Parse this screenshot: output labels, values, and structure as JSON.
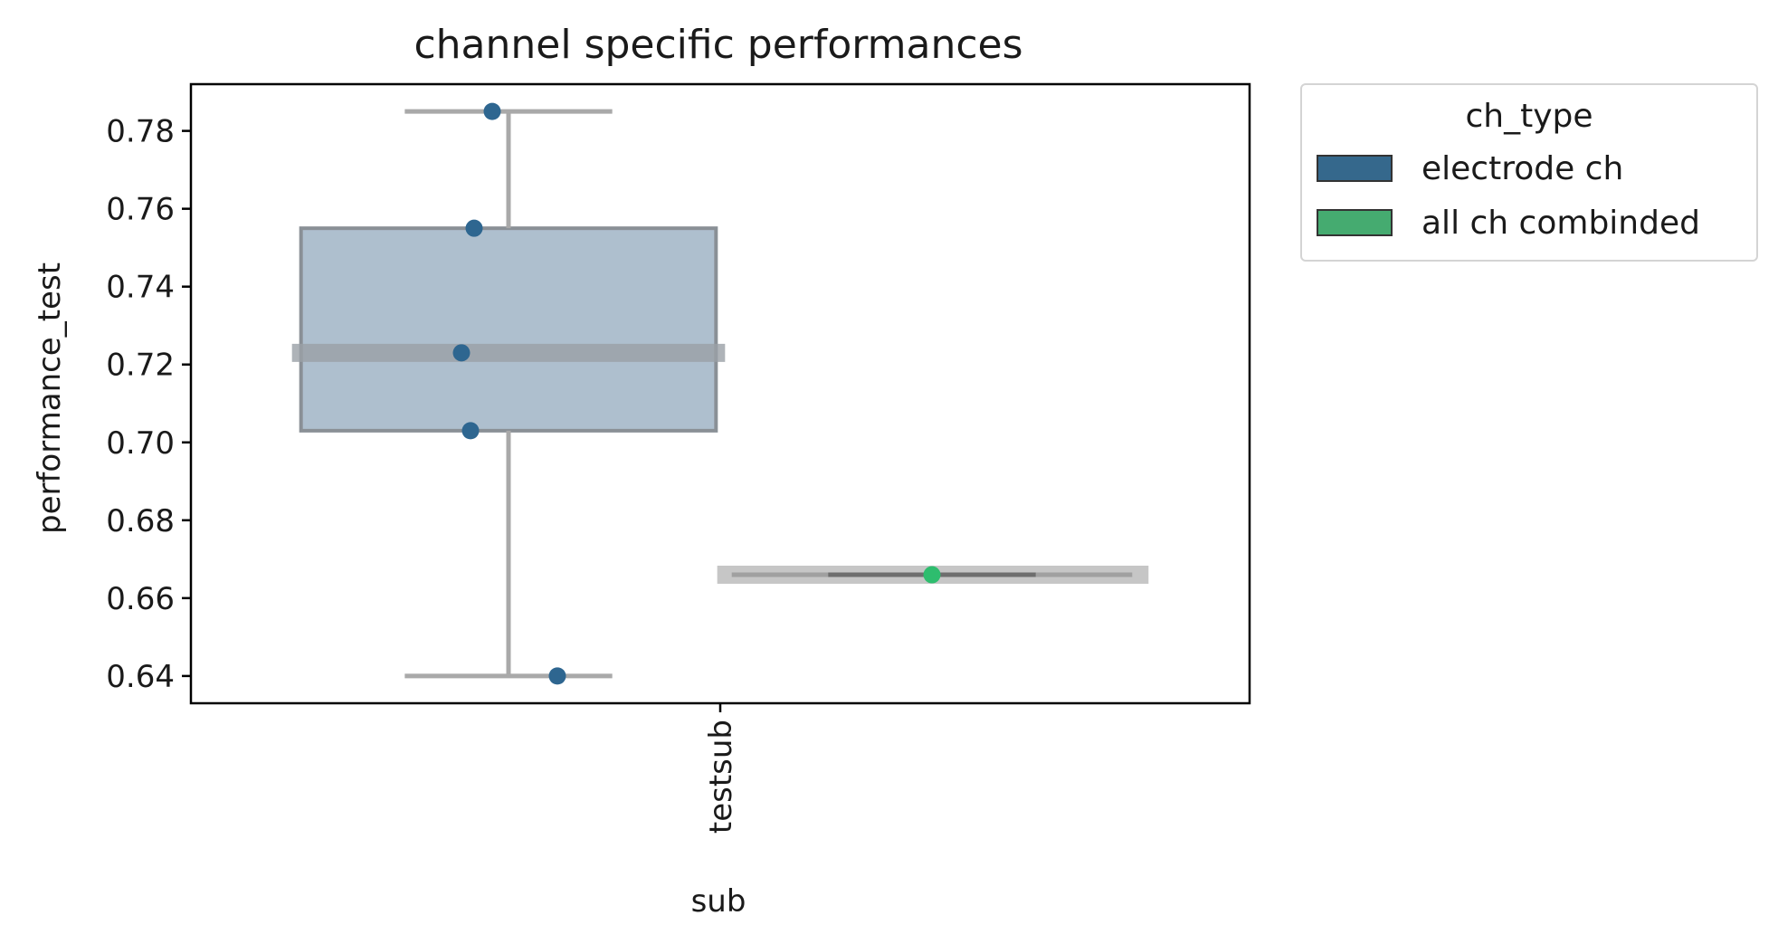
{
  "chart_data": {
    "type": "box",
    "title": "channel specific performances",
    "xlabel": "sub",
    "ylabel": "performance_test",
    "categories": [
      "testsub"
    ],
    "ylim": [
      0.633,
      0.792
    ],
    "yticks": [
      "0.64",
      "0.66",
      "0.68",
      "0.70",
      "0.72",
      "0.74",
      "0.76",
      "0.78"
    ],
    "legend": {
      "title": "ch_type",
      "placement": "outside-top-right",
      "items": [
        {
          "label": "electrode ch",
          "color": "#35688c"
        },
        {
          "label": "all ch combinded",
          "color": "#45ab70"
        }
      ]
    },
    "series": [
      {
        "name": "electrode ch",
        "color": "#2e6690",
        "box": {
          "whisker_low": 0.64,
          "q1": 0.703,
          "median": 0.723,
          "q3": 0.755,
          "whisker_high": 0.785
        },
        "points": [
          0.785,
          0.755,
          0.723,
          0.703,
          0.64
        ]
      },
      {
        "name": "all ch combinded",
        "color": "#2ebd6e",
        "box": {
          "whisker_low": 0.666,
          "q1": 0.666,
          "median": 0.666,
          "q3": 0.666,
          "whisker_high": 0.666
        },
        "points": [
          0.666
        ]
      }
    ],
    "grid": false
  }
}
